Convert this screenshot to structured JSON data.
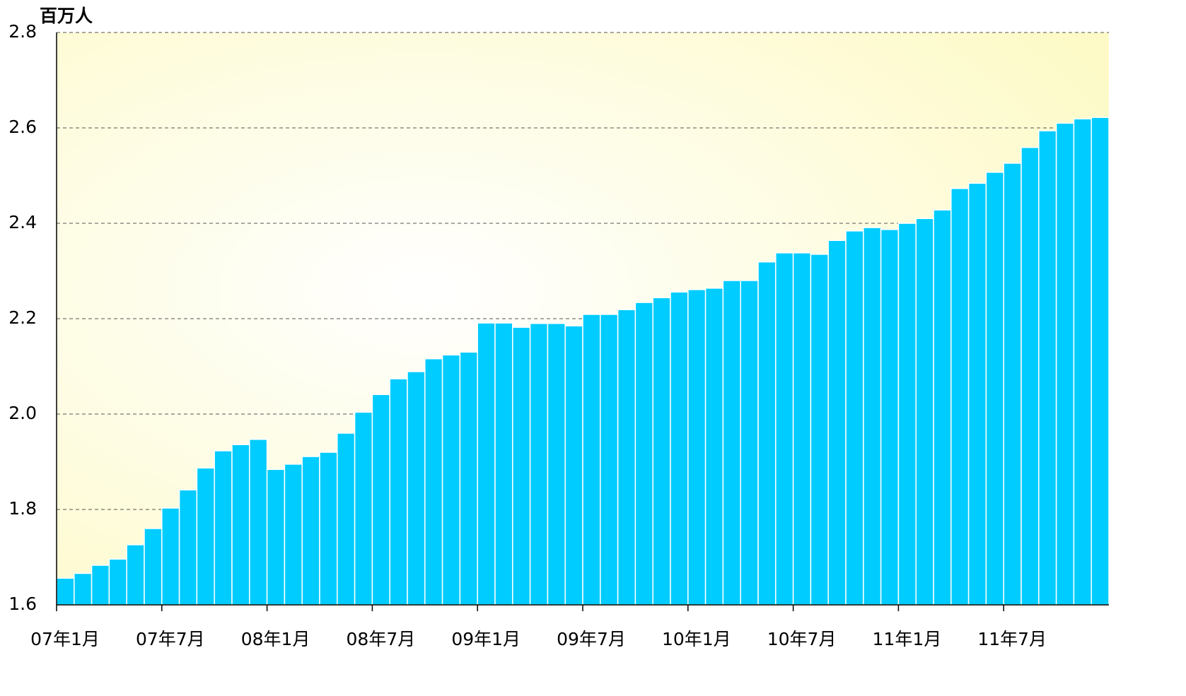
{
  "chart_data": {
    "type": "bar",
    "y_label": "百万人",
    "categories": [
      "07年1月",
      null,
      null,
      null,
      null,
      null,
      "07年7月",
      null,
      null,
      null,
      null,
      null,
      "08年1月",
      null,
      null,
      null,
      null,
      null,
      "08年7月",
      null,
      null,
      null,
      null,
      null,
      "09年1月",
      null,
      null,
      null,
      null,
      null,
      "09年7月",
      null,
      null,
      null,
      null,
      null,
      "10年1月",
      null,
      null,
      null,
      null,
      null,
      "10年7月",
      null,
      null,
      null,
      null,
      null,
      "11年1月",
      null,
      null,
      null,
      null,
      null,
      "11年7月",
      null,
      null,
      null,
      null,
      null
    ],
    "values": [
      1.656,
      1.666,
      1.683,
      1.696,
      1.726,
      1.76,
      1.803,
      1.841,
      1.887,
      1.923,
      1.936,
      1.947,
      1.884,
      1.895,
      1.911,
      1.92,
      1.96,
      2.004,
      2.041,
      2.074,
      2.089,
      2.116,
      2.124,
      2.13,
      2.191,
      2.191,
      2.182,
      2.19,
      2.19,
      2.185,
      2.209,
      2.209,
      2.219,
      2.234,
      2.244,
      2.256,
      2.261,
      2.264,
      2.28,
      2.28,
      2.319,
      2.338,
      2.338,
      2.335,
      2.364,
      2.384,
      2.391,
      2.387,
      2.4,
      2.41,
      2.428,
      2.473,
      2.484,
      2.507,
      2.526,
      2.559,
      2.594,
      2.61,
      2.619,
      2.622
    ],
    "color": "#00ccff",
    "ylim": [
      1.6,
      2.8
    ],
    "yticks": [
      1.6,
      1.8,
      {
        "value": 2,
        "label": "2.0"
      },
      2.2,
      2.4,
      2.6,
      2.8
    ],
    "grid": true
  }
}
